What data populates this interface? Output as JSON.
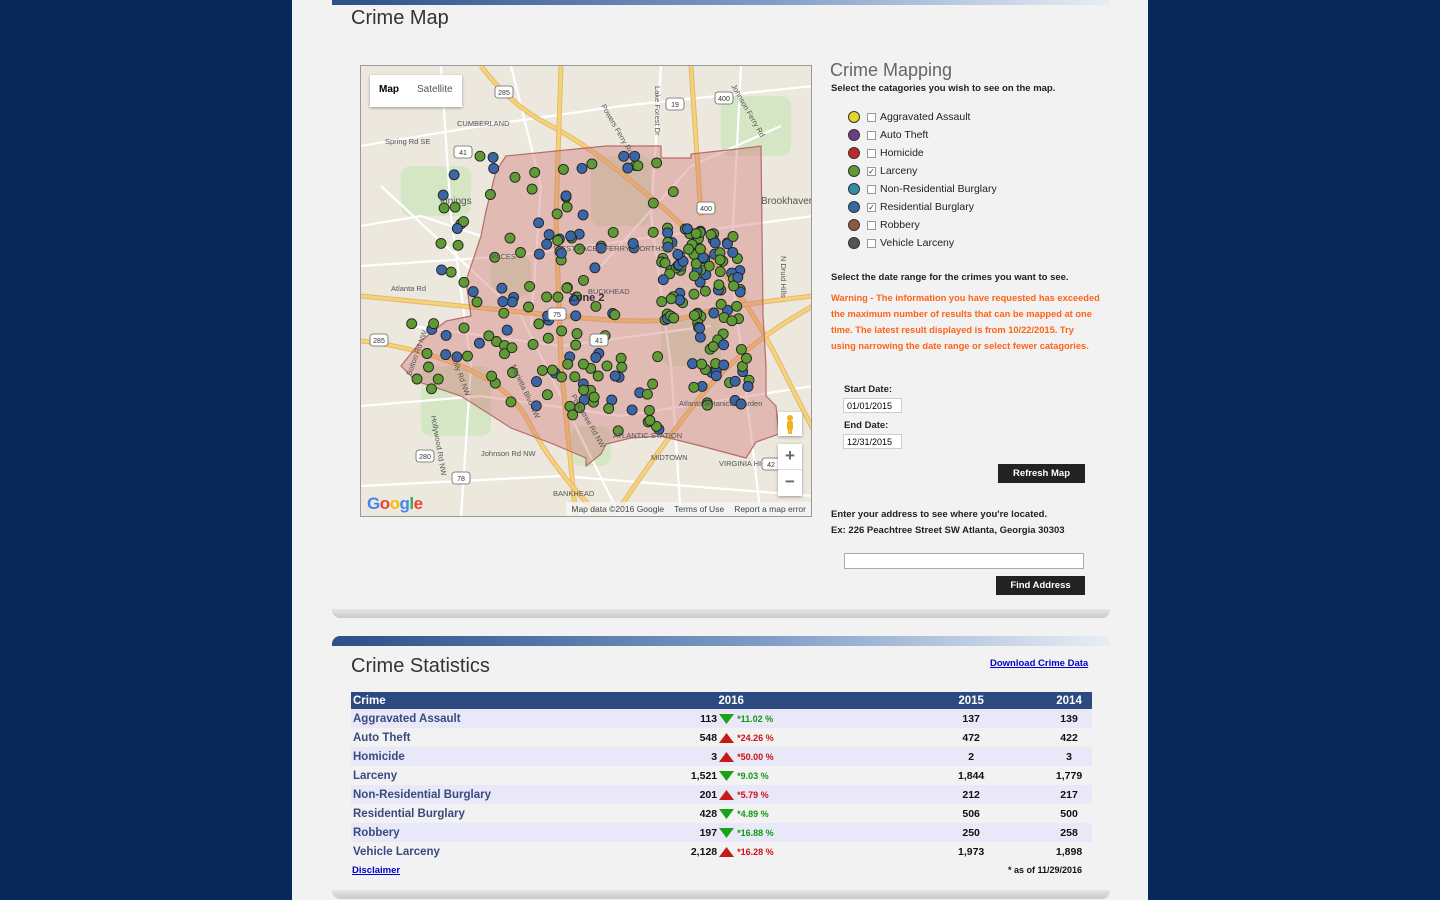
{
  "crime_map": {
    "title": "Crime Map",
    "map": {
      "tab_map": "Map",
      "tab_satellite": "Satellite",
      "logo": "Google",
      "attribution": "Map data ©2016 Google",
      "terms": "Terms of Use",
      "report": "Report a map error",
      "zoom_in": "+",
      "zoom_out": "−",
      "labels": [
        "CUMBERLAND",
        "Spring Rd SE",
        "Vinings",
        "PACES",
        "WEST PACES FERRY/ NORTHSIDE",
        "BUCKHEAD",
        "Zone 2",
        "Brookhaven",
        "Atlanta Rd",
        "Atlanta Botanical Garden",
        "MIDTOWN",
        "ATLANTIC STATION",
        "BANKHEAD",
        "VIRGINIA HIGHLAND",
        "Johnson Rd NW",
        "Lake Forest Dr",
        "Powers Ferry Rd",
        "Johnson Ferry Rd",
        "N Druid Hills",
        "Holly Rd NW",
        "Hollywood Rd NW",
        "Bolton Rd NW",
        "Marietta Blvd NW",
        "Peachtree Rd NW"
      ],
      "shields": [
        "285",
        "19",
        "400",
        "41",
        "75",
        "400",
        "285",
        "41",
        "280",
        "78",
        "42"
      ]
    }
  },
  "crime_mapping": {
    "title": "Crime Mapping",
    "instructions": "Select the catagories you wish to see on the map.",
    "categories": [
      {
        "label": "Aggravated Assault",
        "color": "#e6d42a",
        "checked": false
      },
      {
        "label": "Auto Theft",
        "color": "#6a3d86",
        "checked": false
      },
      {
        "label": "Homicide",
        "color": "#c0282c",
        "checked": false
      },
      {
        "label": "Larceny",
        "color": "#5f9a34",
        "checked": true
      },
      {
        "label": "Non-Residential Burglary",
        "color": "#2f8fa6",
        "checked": false
      },
      {
        "label": "Residential Burglary",
        "color": "#3a66a8",
        "checked": true
      },
      {
        "label": "Robbery",
        "color": "#8e5a3c",
        "checked": false
      },
      {
        "label": "Vehicle Larceny",
        "color": "#555555",
        "checked": false
      }
    ],
    "date_instructions": "Select the date range for the crimes you want to see.",
    "warning": "Warning - The information you have requested has exceeded the maximum number of results that can be mapped at one time. The latest result displayed is from 10/22/2015. Try using narrowing the date range or select fewer catagories.",
    "start_label": "Start Date:",
    "start_value": "01/01/2015",
    "end_label": "End Date:",
    "end_value": "12/31/2015",
    "refresh_button": "Refresh Map",
    "address_instructions": "Enter your address to see where you're located.",
    "address_example": "Ex: 226 Peachtree Street SW Atlanta, Georgia 30303",
    "address_value": "",
    "find_button": "Find Address"
  },
  "crime_statistics": {
    "title": "Crime Statistics",
    "download_link": "Download Crime Data",
    "columns": [
      "Crime",
      "2016",
      "2015",
      "2014"
    ],
    "rows": [
      {
        "crime": "Aggravated Assault",
        "y2016": "113",
        "trend": "down",
        "pct": "11.02 %",
        "y2015": "137",
        "y2014": "139"
      },
      {
        "crime": "Auto Theft",
        "y2016": "548",
        "trend": "up",
        "pct": "24.26 %",
        "y2015": "472",
        "y2014": "422"
      },
      {
        "crime": "Homicide",
        "y2016": "3",
        "trend": "up",
        "pct": "50.00 %",
        "y2015": "2",
        "y2014": "3"
      },
      {
        "crime": "Larceny",
        "y2016": "1,521",
        "trend": "down",
        "pct": "9.03 %",
        "y2015": "1,844",
        "y2014": "1,779"
      },
      {
        "crime": "Non-Residential Burglary",
        "y2016": "201",
        "trend": "up",
        "pct": "5.79 %",
        "y2015": "212",
        "y2014": "217"
      },
      {
        "crime": "Residential Burglary",
        "y2016": "428",
        "trend": "down",
        "pct": "4.89 %",
        "y2015": "506",
        "y2014": "500"
      },
      {
        "crime": "Robbery",
        "y2016": "197",
        "trend": "down",
        "pct": "16.88 %",
        "y2015": "250",
        "y2014": "258"
      },
      {
        "crime": "Vehicle Larceny",
        "y2016": "2,128",
        "trend": "up",
        "pct": "16.28 %",
        "y2015": "1,973",
        "y2014": "1,898"
      }
    ],
    "disclaimer": "Disclaimer",
    "as_of": "* as of 11/29/2016",
    "pct_prefix": "*"
  }
}
